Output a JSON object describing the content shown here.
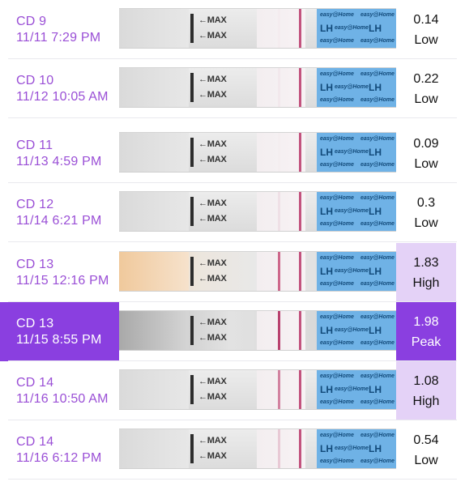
{
  "readings": [
    {
      "day": "CD 9",
      "timestamp": "11/11 7:29 PM",
      "value": "0.14",
      "level": "Low",
      "level_style": "normal",
      "strip_style": "plain",
      "test_line_color": "#f0dde4",
      "test_line_visibility": 0.2
    },
    {
      "day": "CD 10",
      "timestamp": "11/12 10:05 AM",
      "value": "0.22",
      "level": "Low",
      "level_style": "normal",
      "strip_style": "plain",
      "test_line_color": "#ecd6df",
      "test_line_visibility": 0.3
    },
    {
      "day": "CD 11",
      "timestamp": "11/13 4:59 PM",
      "value": "0.09",
      "level": "Low",
      "level_style": "normal",
      "strip_style": "plain",
      "test_line_color": "#efe2e7",
      "test_line_visibility": 0.15
    },
    {
      "day": "CD 12",
      "timestamp": "11/14 6:21 PM",
      "value": "0.3",
      "level": "Low",
      "level_style": "normal",
      "strip_style": "plain",
      "test_line_color": "#e6c9d4",
      "test_line_visibility": 0.4
    },
    {
      "day": "CD 13",
      "timestamp": "11/15 12:16 PM",
      "value": "1.83",
      "level": "High",
      "level_style": "high",
      "strip_style": "warm",
      "test_line_color": "#c9587f",
      "test_line_visibility": 0.9
    },
    {
      "day": "CD 13",
      "timestamp": "11/15 8:55 PM",
      "value": "1.98",
      "level": "Peak",
      "level_style": "peak",
      "strip_style": "dark",
      "test_line_color": "#b8416e",
      "test_line_visibility": 1.0
    },
    {
      "day": "CD 14",
      "timestamp": "11/16 10:50 AM",
      "value": "1.08",
      "level": "High",
      "level_style": "high",
      "strip_style": "plain",
      "test_line_color": "#c9668b",
      "test_line_visibility": 0.8
    },
    {
      "day": "CD 14",
      "timestamp": "11/16 6:12 PM",
      "value": "0.54",
      "level": "Low",
      "level_style": "normal",
      "strip_style": "plain",
      "test_line_color": "#dcaabd",
      "test_line_visibility": 0.55
    }
  ],
  "strip_text": {
    "max_label": "←MAX",
    "brand": "easy@Home",
    "lh": "LH"
  },
  "colors": {
    "accent": "#8a3fe0",
    "label_text": "#9a4fd6",
    "high_bg": "#e4d2f7",
    "control_line": "#c2537e",
    "wrapper_blue": "#6fb2e6"
  }
}
